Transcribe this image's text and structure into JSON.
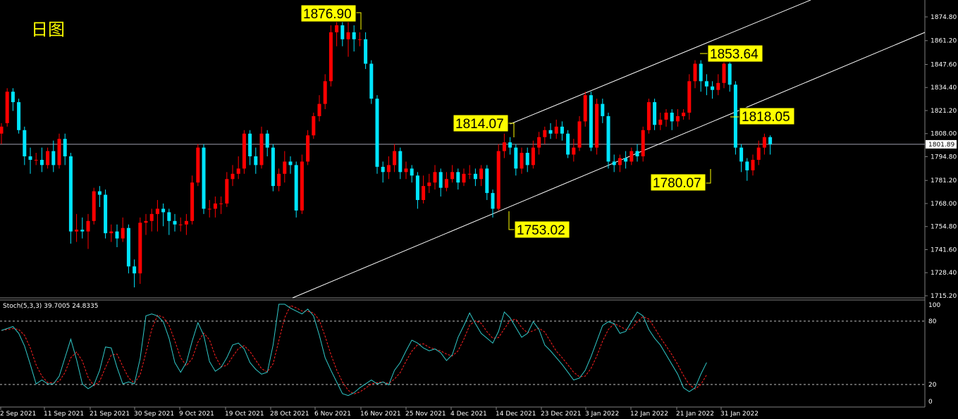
{
  "title": "日图",
  "stoch_label": "Stoch(5,3,3) 39.7005 24.8335",
  "current_price_label": "1801.89",
  "colors": {
    "up": "#ff0000",
    "down": "#00e5ff",
    "stoch_main": "#30c8c8",
    "stoch_signal": "#ff2020",
    "annotation_bg": "#ffff00",
    "trendline": "#ffffff"
  },
  "chart_data": {
    "type": "candlestick",
    "price_axis_ticks": [
      "1874.80",
      "1861.20",
      "1847.60",
      "1834.40",
      "1821.20",
      "1808.00",
      "1794.80",
      "1781.20",
      "1768.00",
      "1754.80",
      "1741.60",
      "1728.40",
      "1715.20"
    ],
    "stoch_axis_ticks": [
      "100",
      "80",
      "20",
      "0"
    ],
    "x_axis_labels": [
      "2 Sep 2021",
      "11 Sep 2021",
      "21 Sep 2021",
      "30 Sep 2021",
      "9 Oct 2021",
      "19 Oct 2021",
      "28 Oct 2021",
      "6 Nov 2021",
      "16 Nov 2021",
      "25 Nov 2021",
      "4 Dec 2021",
      "14 Dec 2021",
      "23 Dec 2021",
      "3 Jan 2022",
      "12 Jan 2022",
      "21 Jan 2022",
      "31 Jan 2022"
    ],
    "annotations": [
      "1876.90",
      "1853.64",
      "1814.07",
      "1818.05",
      "1780.07",
      "1753.02"
    ],
    "current_price": 1801.89,
    "ylim": [
      1712,
      1880
    ],
    "stoch_levels": [
      80,
      20
    ],
    "candles": [
      [
        1808,
        1812,
        1802,
        1814
      ],
      [
        1814,
        1832,
        1812,
        1834
      ],
      [
        1832,
        1826,
        1821,
        1834
      ],
      [
        1826,
        1810,
        1808,
        1828
      ],
      [
        1810,
        1795,
        1790,
        1812
      ],
      [
        1795,
        1793,
        1785,
        1800
      ],
      [
        1793,
        1793,
        1790,
        1797
      ],
      [
        1793,
        1790,
        1786,
        1800
      ],
      [
        1790,
        1798,
        1788,
        1800
      ],
      [
        1798,
        1790,
        1786,
        1804
      ],
      [
        1790,
        1805,
        1788,
        1808
      ],
      [
        1805,
        1795,
        1790,
        1808
      ],
      [
        1795,
        1752,
        1745,
        1797
      ],
      [
        1752,
        1753,
        1746,
        1762
      ],
      [
        1753,
        1752,
        1748,
        1760
      ],
      [
        1752,
        1758,
        1742,
        1762
      ],
      [
        1758,
        1775,
        1756,
        1777
      ],
      [
        1775,
        1773,
        1766,
        1778
      ],
      [
        1773,
        1751,
        1748,
        1776
      ],
      [
        1751,
        1752,
        1746,
        1756
      ],
      [
        1752,
        1748,
        1743,
        1756
      ],
      [
        1748,
        1754,
        1746,
        1760
      ],
      [
        1754,
        1732,
        1728,
        1756
      ],
      [
        1732,
        1728,
        1720,
        1736
      ],
      [
        1728,
        1757,
        1722,
        1760
      ],
      [
        1757,
        1758,
        1750,
        1762
      ],
      [
        1758,
        1762,
        1752,
        1765
      ],
      [
        1762,
        1765,
        1752,
        1770
      ],
      [
        1765,
        1763,
        1755,
        1768
      ],
      [
        1763,
        1758,
        1750,
        1765
      ],
      [
        1758,
        1756,
        1752,
        1762
      ],
      [
        1756,
        1756,
        1752,
        1760
      ],
      [
        1756,
        1758,
        1750,
        1762
      ],
      [
        1758,
        1780,
        1756,
        1784
      ],
      [
        1780,
        1800,
        1778,
        1802
      ],
      [
        1800,
        1765,
        1762,
        1802
      ],
      [
        1765,
        1765,
        1760,
        1770
      ],
      [
        1765,
        1768,
        1760,
        1772
      ],
      [
        1768,
        1768,
        1762,
        1772
      ],
      [
        1768,
        1782,
        1766,
        1786
      ],
      [
        1782,
        1785,
        1778,
        1790
      ],
      [
        1785,
        1788,
        1782,
        1795
      ],
      [
        1788,
        1808,
        1785,
        1810
      ],
      [
        1808,
        1795,
        1790,
        1810
      ],
      [
        1795,
        1790,
        1785,
        1800
      ],
      [
        1790,
        1808,
        1788,
        1812
      ],
      [
        1808,
        1800,
        1795,
        1810
      ],
      [
        1800,
        1778,
        1775,
        1802
      ],
      [
        1778,
        1785,
        1775,
        1788
      ],
      [
        1785,
        1792,
        1780,
        1798
      ],
      [
        1792,
        1790,
        1785,
        1795
      ],
      [
        1790,
        1764,
        1760,
        1792
      ],
      [
        1764,
        1792,
        1762,
        1796
      ],
      [
        1792,
        1807,
        1790,
        1810
      ],
      [
        1807,
        1818,
        1805,
        1820
      ],
      [
        1818,
        1825,
        1815,
        1830
      ],
      [
        1825,
        1838,
        1822,
        1842
      ],
      [
        1838,
        1866,
        1835,
        1870
      ],
      [
        1866,
        1870,
        1858,
        1874
      ],
      [
        1870,
        1862,
        1858,
        1874
      ],
      [
        1862,
        1866,
        1852,
        1872
      ],
      [
        1866,
        1862,
        1855,
        1870
      ],
      [
        1862,
        1862,
        1858,
        1866
      ],
      [
        1862,
        1848,
        1845,
        1866
      ],
      [
        1848,
        1828,
        1825,
        1850
      ],
      [
        1828,
        1789,
        1785,
        1830
      ],
      [
        1789,
        1786,
        1780,
        1792
      ],
      [
        1786,
        1790,
        1782,
        1795
      ],
      [
        1790,
        1798,
        1786,
        1802
      ],
      [
        1798,
        1786,
        1782,
        1800
      ],
      [
        1786,
        1788,
        1782,
        1792
      ],
      [
        1788,
        1784,
        1780,
        1790
      ],
      [
        1784,
        1770,
        1765,
        1786
      ],
      [
        1770,
        1778,
        1768,
        1784
      ],
      [
        1778,
        1780,
        1774,
        1785
      ],
      [
        1780,
        1786,
        1776,
        1790
      ],
      [
        1786,
        1777,
        1772,
        1788
      ],
      [
        1777,
        1782,
        1775,
        1786
      ],
      [
        1782,
        1786,
        1780,
        1790
      ],
      [
        1786,
        1780,
        1776,
        1788
      ],
      [
        1780,
        1785,
        1778,
        1788
      ],
      [
        1785,
        1785,
        1782,
        1790
      ],
      [
        1785,
        1782,
        1778,
        1788
      ],
      [
        1782,
        1788,
        1778,
        1790
      ],
      [
        1788,
        1774,
        1770,
        1790
      ],
      [
        1774,
        1765,
        1760,
        1776
      ],
      [
        1765,
        1798,
        1764,
        1802
      ],
      [
        1798,
        1803,
        1794,
        1808
      ],
      [
        1803,
        1800,
        1796,
        1806
      ],
      [
        1800,
        1788,
        1784,
        1802
      ],
      [
        1788,
        1797,
        1785,
        1800
      ],
      [
        1797,
        1790,
        1786,
        1800
      ],
      [
        1790,
        1800,
        1788,
        1804
      ],
      [
        1800,
        1806,
        1796,
        1809
      ],
      [
        1806,
        1810,
        1802,
        1812
      ],
      [
        1810,
        1808,
        1805,
        1814
      ],
      [
        1808,
        1812,
        1805,
        1816
      ],
      [
        1812,
        1808,
        1804,
        1815
      ],
      [
        1808,
        1796,
        1794,
        1810
      ],
      [
        1796,
        1800,
        1792,
        1805
      ],
      [
        1800,
        1815,
        1798,
        1818
      ],
      [
        1815,
        1830,
        1812,
        1832
      ],
      [
        1830,
        1800,
        1798,
        1832
      ],
      [
        1800,
        1825,
        1796,
        1828
      ],
      [
        1825,
        1818,
        1814,
        1828
      ],
      [
        1818,
        1792,
        1788,
        1820
      ],
      [
        1792,
        1790,
        1786,
        1796
      ],
      [
        1790,
        1794,
        1786,
        1796
      ],
      [
        1794,
        1792,
        1788,
        1798
      ],
      [
        1792,
        1798,
        1790,
        1800
      ],
      [
        1798,
        1795,
        1792,
        1802
      ],
      [
        1795,
        1810,
        1792,
        1812
      ],
      [
        1810,
        1826,
        1808,
        1828
      ],
      [
        1826,
        1813,
        1810,
        1828
      ],
      [
        1813,
        1816,
        1810,
        1820
      ],
      [
        1816,
        1820,
        1812,
        1822
      ],
      [
        1820,
        1815,
        1810,
        1822
      ],
      [
        1815,
        1818,
        1812,
        1822
      ],
      [
        1818,
        1820,
        1816,
        1822
      ],
      [
        1820,
        1838,
        1816,
        1842
      ],
      [
        1838,
        1848,
        1834,
        1850
      ],
      [
        1848,
        1838,
        1832,
        1850
      ],
      [
        1838,
        1835,
        1830,
        1842
      ],
      [
        1835,
        1833,
        1828,
        1838
      ],
      [
        1833,
        1837,
        1830,
        1842
      ],
      [
        1837,
        1848,
        1834,
        1852
      ],
      [
        1848,
        1836,
        1832,
        1852
      ],
      [
        1836,
        1800,
        1796,
        1838
      ],
      [
        1800,
        1792,
        1786,
        1802
      ],
      [
        1792,
        1787,
        1781,
        1794
      ],
      [
        1787,
        1793,
        1784,
        1796
      ],
      [
        1793,
        1800,
        1790,
        1804
      ],
      [
        1800,
        1806,
        1796,
        1808
      ],
      [
        1806,
        1801.89,
        1796,
        1807
      ]
    ],
    "stoch_main": [
      73,
      75,
      77,
      70,
      57,
      38,
      18,
      22,
      18,
      18,
      26,
      45,
      64,
      43,
      18,
      13,
      17,
      32,
      56,
      55,
      35,
      18,
      20,
      18,
      44,
      88,
      90,
      88,
      82,
      65,
      40,
      30,
      40,
      62,
      81,
      68,
      41,
      31,
      35,
      45,
      58,
      60,
      54,
      40,
      33,
      28,
      30,
      58,
      100,
      100,
      96,
      93,
      90,
      95,
      88,
      68,
      45,
      32,
      20,
      8,
      6,
      9,
      14,
      18,
      22,
      18,
      20,
      17,
      32,
      40,
      52,
      63,
      60,
      55,
      52,
      54,
      50,
      42,
      48,
      66,
      78,
      91,
      80,
      70,
      65,
      60,
      72,
      92,
      86,
      76,
      66,
      70,
      82,
      74,
      58,
      52,
      45,
      38,
      30,
      22,
      24,
      32,
      46,
      62,
      78,
      82,
      80,
      70,
      72,
      82,
      92,
      88,
      74,
      65,
      58,
      48,
      38,
      28,
      14,
      10,
      14,
      28,
      40
    ]
  }
}
